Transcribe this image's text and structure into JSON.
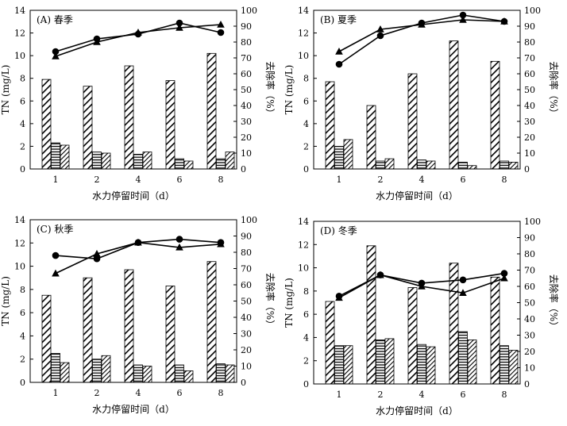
{
  "figure": {
    "x_axis_label": "水力停留时间（d）",
    "y_left_label": "TN (mg/L)",
    "y_right_label": "去除率（%）"
  },
  "chart_data": [
    {
      "type": "bar",
      "panel": "A",
      "title": "(A) 春季",
      "categories": [
        "1",
        "2",
        "4",
        "6",
        "8"
      ],
      "ylim": [
        0,
        14
      ],
      "y2lim": [
        0,
        100
      ],
      "left_ticks": [
        0,
        2,
        4,
        6,
        8,
        10,
        12,
        14
      ],
      "right_ticks": [
        0,
        10,
        20,
        30,
        40,
        50,
        60,
        70,
        80,
        90,
        100
      ],
      "bar_series": [
        {
          "name": "series-1",
          "pattern": "diag-wide",
          "values": [
            7.9,
            7.3,
            9.1,
            7.8,
            10.2
          ]
        },
        {
          "name": "series-2",
          "pattern": "horiz",
          "values": [
            2.3,
            1.5,
            1.3,
            0.9,
            0.9
          ]
        },
        {
          "name": "series-3",
          "pattern": "diag-narrow",
          "values": [
            2.1,
            1.4,
            1.5,
            0.7,
            1.5
          ]
        }
      ],
      "line_series": [
        {
          "name": "line-circle",
          "marker": "circle",
          "values": [
            74,
            82,
            85,
            92,
            86
          ]
        },
        {
          "name": "line-triangle",
          "marker": "triangle",
          "values": [
            71,
            80,
            86,
            89,
            91
          ]
        }
      ]
    },
    {
      "type": "bar",
      "panel": "B",
      "title": "(B) 夏季",
      "categories": [
        "1",
        "2",
        "4",
        "6",
        "8"
      ],
      "ylim": [
        0,
        14
      ],
      "y2lim": [
        0,
        100
      ],
      "left_ticks": [
        0,
        2,
        4,
        6,
        8,
        10,
        12,
        14
      ],
      "right_ticks": [
        0,
        10,
        20,
        30,
        40,
        50,
        60,
        70,
        80,
        90,
        100
      ],
      "bar_series": [
        {
          "name": "series-1",
          "pattern": "diag-wide",
          "values": [
            7.7,
            5.6,
            8.4,
            11.3,
            9.5
          ]
        },
        {
          "name": "series-2",
          "pattern": "horiz",
          "values": [
            2.0,
            0.7,
            0.8,
            0.6,
            0.7
          ]
        },
        {
          "name": "series-3",
          "pattern": "diag-narrow",
          "values": [
            2.6,
            0.9,
            0.7,
            0.3,
            0.6
          ]
        }
      ],
      "line_series": [
        {
          "name": "line-circle",
          "marker": "circle",
          "values": [
            66,
            84,
            92,
            97,
            93
          ]
        },
        {
          "name": "line-triangle",
          "marker": "triangle",
          "values": [
            74,
            88,
            91,
            94,
            93
          ]
        }
      ]
    },
    {
      "type": "bar",
      "panel": "C",
      "title": "(C) 秋季",
      "categories": [
        "1",
        "2",
        "4",
        "6",
        "8"
      ],
      "ylim": [
        0,
        14
      ],
      "y2lim": [
        0,
        100
      ],
      "left_ticks": [
        0,
        2,
        4,
        6,
        8,
        10,
        12,
        14
      ],
      "right_ticks": [
        0,
        10,
        20,
        30,
        40,
        50,
        60,
        70,
        80,
        90,
        100
      ],
      "bar_series": [
        {
          "name": "series-1",
          "pattern": "diag-wide",
          "values": [
            7.5,
            9.0,
            9.7,
            8.3,
            10.4
          ]
        },
        {
          "name": "series-2",
          "pattern": "horiz",
          "values": [
            2.5,
            2.0,
            1.5,
            1.5,
            1.6
          ]
        },
        {
          "name": "series-3",
          "pattern": "diag-narrow",
          "values": [
            1.7,
            2.3,
            1.4,
            1.0,
            1.5
          ]
        }
      ],
      "line_series": [
        {
          "name": "line-circle",
          "marker": "circle",
          "values": [
            78,
            76,
            86,
            88,
            86
          ]
        },
        {
          "name": "line-triangle",
          "marker": "triangle",
          "values": [
            67,
            79,
            86,
            83,
            85
          ]
        }
      ]
    },
    {
      "type": "bar",
      "panel": "D",
      "title": "(D) 冬季",
      "categories": [
        "1",
        "2",
        "4",
        "6",
        "8"
      ],
      "ylim": [
        0,
        14
      ],
      "y2lim": [
        0,
        100
      ],
      "left_ticks": [
        0,
        2,
        4,
        6,
        8,
        10,
        12,
        14
      ],
      "right_ticks": [
        0,
        10,
        20,
        30,
        40,
        50,
        60,
        70,
        80,
        90,
        100
      ],
      "bar_series": [
        {
          "name": "series-1",
          "pattern": "diag-wide",
          "values": [
            7.1,
            11.9,
            8.3,
            10.4,
            9.2
          ]
        },
        {
          "name": "series-2",
          "pattern": "horiz",
          "values": [
            3.3,
            3.8,
            3.4,
            4.5,
            3.3
          ]
        },
        {
          "name": "series-3",
          "pattern": "diag-narrow",
          "values": [
            3.3,
            3.9,
            3.2,
            3.8,
            2.9
          ]
        }
      ],
      "line_series": [
        {
          "name": "line-circle",
          "marker": "circle",
          "values": [
            54,
            67,
            62,
            64,
            68
          ]
        },
        {
          "name": "line-triangle",
          "marker": "triangle",
          "values": [
            53,
            67,
            60,
            56,
            65
          ]
        }
      ]
    }
  ]
}
